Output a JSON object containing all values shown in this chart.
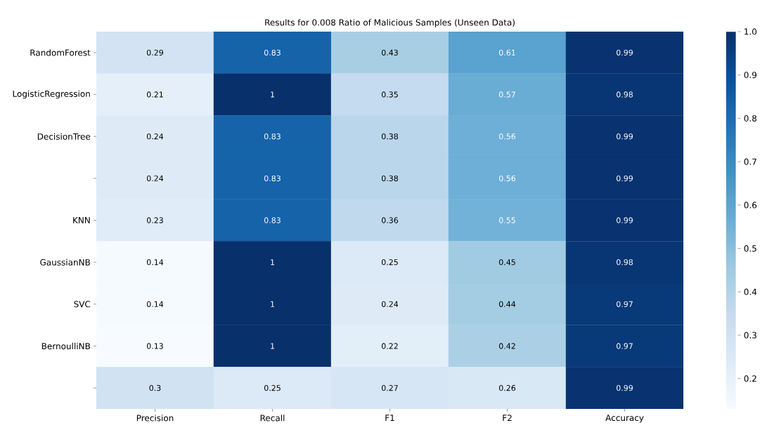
{
  "chart_data": {
    "type": "heatmap",
    "title": "Results for 0.008 Ratio of Malicious Samples (Unseen Data)",
    "categories": [
      "Precision",
      "Recall",
      "F1",
      "F2",
      "Accuracy"
    ],
    "y_categories": [
      "RandomForest",
      "LogisticRegression",
      "DecisionTree",
      null,
      "KNN",
      "GaussianNB",
      "SVC",
      "BernoulliNB",
      null
    ],
    "cells": [
      [
        0.29,
        0.83,
        0.43,
        0.61,
        0.99
      ],
      [
        0.21,
        1,
        0.35,
        0.57,
        0.98
      ],
      [
        0.24,
        0.83,
        0.38,
        0.56,
        0.99
      ],
      [
        0.24,
        0.83,
        0.38,
        0.56,
        0.99
      ],
      [
        0.23,
        0.83,
        0.36,
        0.55,
        0.99
      ],
      [
        0.14,
        1,
        0.25,
        0.45,
        0.98
      ],
      [
        0.14,
        1,
        0.24,
        0.44,
        0.97
      ],
      [
        0.13,
        1,
        0.22,
        0.42,
        0.97
      ],
      [
        0.3,
        0.25,
        0.27,
        0.26,
        0.99
      ]
    ],
    "data_labels": true,
    "clim": [
      0.13,
      1.0
    ],
    "cticks": [
      0.2,
      0.3,
      0.4,
      0.5,
      0.6,
      0.7,
      0.8,
      0.9,
      {
        "value": 1,
        "label": "1.0"
      }
    ]
  }
}
